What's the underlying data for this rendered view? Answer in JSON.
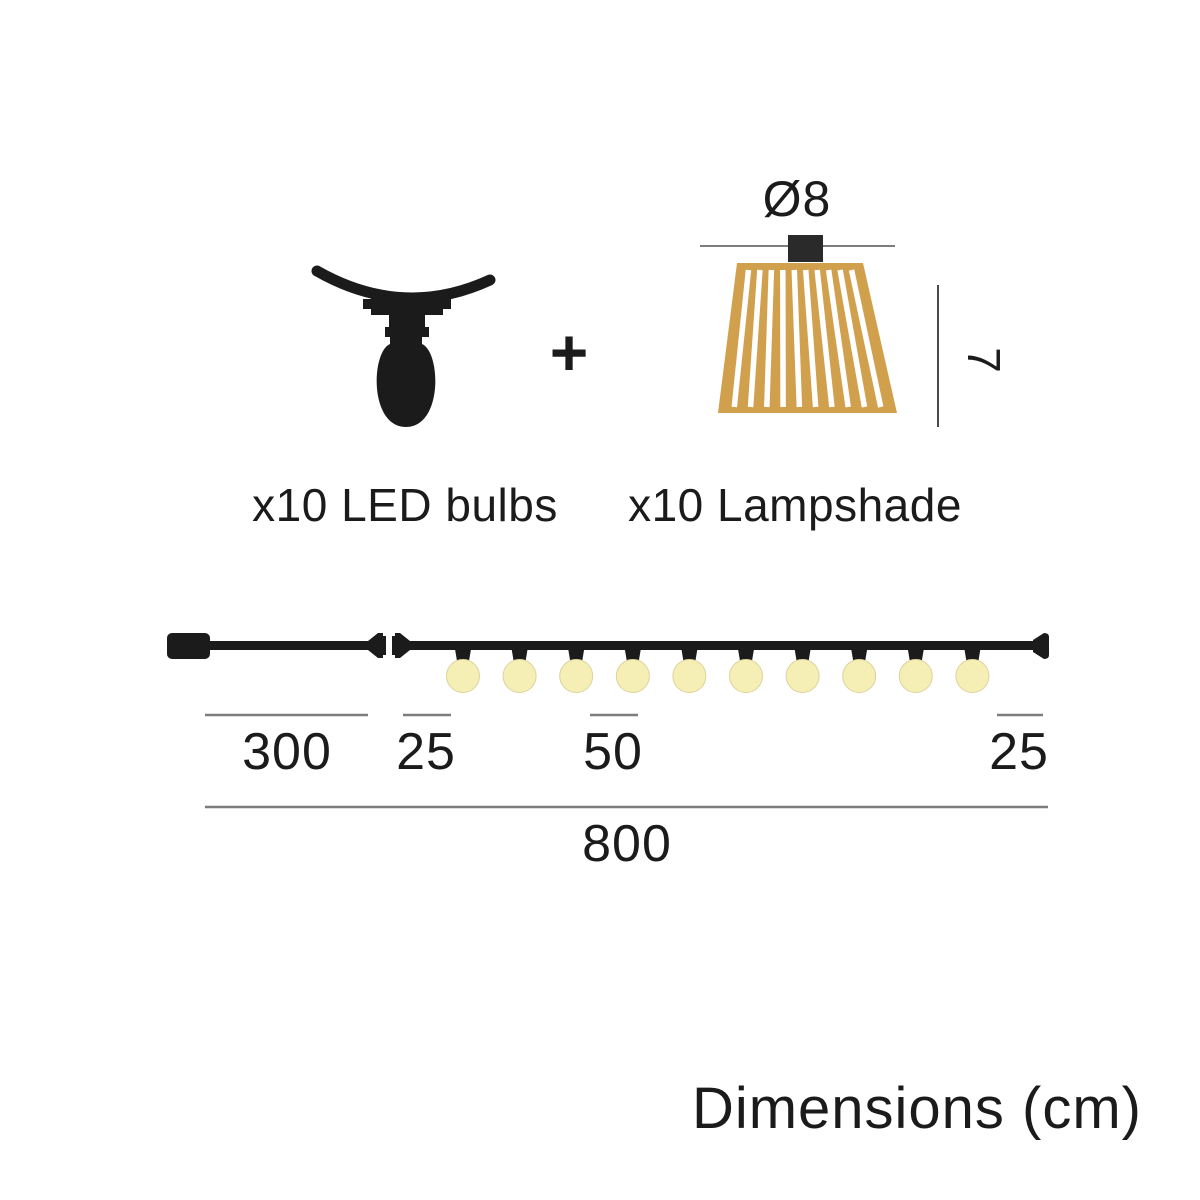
{
  "colors": {
    "ink": "#1b1b1b",
    "dimension_line_gray": "#7d7d7d",
    "lampshade_gold": "#D1A04D",
    "bulb_yellow": "#F5EFB5"
  },
  "components": {
    "plus_sign": "+",
    "led_bulbs": {
      "label": "x10 LED bulbs"
    },
    "lampshade": {
      "label": "x10 Lampshade",
      "diameter_label": "Ø8",
      "height_label": "7"
    }
  },
  "string_diagram": {
    "bulb_count": 10,
    "segments": [
      {
        "name": "lead-cable",
        "label": "300"
      },
      {
        "name": "start-gap",
        "label": "25"
      },
      {
        "name": "bulb-spacing",
        "label": "50"
      },
      {
        "name": "end-gap",
        "label": "25"
      }
    ],
    "total": {
      "label": "800"
    }
  },
  "footer": {
    "title": "Dimensions (cm)"
  },
  "units": "cm"
}
